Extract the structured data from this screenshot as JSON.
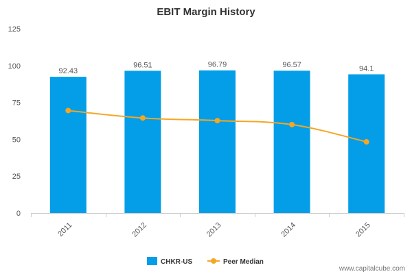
{
  "chart_data": {
    "type": "bar",
    "title": "EBIT Margin History",
    "categories": [
      "2011",
      "2012",
      "2013",
      "2014",
      "2015"
    ],
    "ylim": [
      0,
      125
    ],
    "yticks": [
      0,
      25,
      50,
      75,
      100,
      125
    ],
    "grid": false,
    "legend_position": "bottom-center",
    "series": [
      {
        "name": "CHKR-US",
        "type": "bar",
        "color": "#049ee8",
        "values": [
          92.43,
          96.51,
          96.79,
          96.57,
          94.1
        ],
        "labels": [
          "92.43",
          "96.51",
          "96.79",
          "96.57",
          "94.1"
        ]
      },
      {
        "name": "Peer Median",
        "type": "line",
        "color": "#f5a623",
        "values": [
          69.5,
          64.5,
          62.7,
          60.0,
          48.3
        ]
      }
    ]
  },
  "watermark": "www.capitalcube.com"
}
